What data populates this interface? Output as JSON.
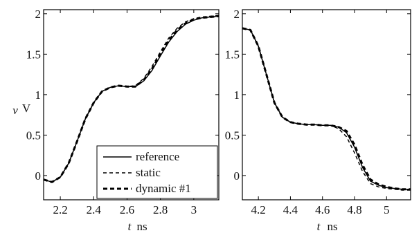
{
  "chart_data": [
    {
      "type": "line",
      "title": "",
      "xlabel": {
        "symbol": "t",
        "unit": "ns"
      },
      "ylabel": {
        "symbol": "v",
        "unit": "V"
      },
      "xlim": [
        2.1,
        3.15
      ],
      "ylim": [
        -0.3,
        2.05
      ],
      "xticks": [
        "2.2",
        "2.4",
        "2.6",
        "2.8",
        "3"
      ],
      "yticks": [
        "0",
        "0.5",
        "1",
        "1.5",
        "2"
      ],
      "legend": {
        "position": "bottom-right"
      },
      "series": [
        {
          "name": "reference",
          "style": "solid",
          "x": [
            2.1,
            2.15,
            2.2,
            2.25,
            2.3,
            2.35,
            2.4,
            2.45,
            2.5,
            2.55,
            2.6,
            2.65,
            2.7,
            2.75,
            2.8,
            2.85,
            2.9,
            2.95,
            3.0,
            3.05,
            3.1,
            3.15
          ],
          "y": [
            -0.05,
            -0.08,
            -0.02,
            0.15,
            0.42,
            0.7,
            0.9,
            1.04,
            1.09,
            1.11,
            1.1,
            1.1,
            1.17,
            1.3,
            1.48,
            1.65,
            1.78,
            1.87,
            1.92,
            1.95,
            1.96,
            1.97
          ]
        },
        {
          "name": "static",
          "style": "dashed",
          "x": [
            2.1,
            2.15,
            2.2,
            2.25,
            2.3,
            2.35,
            2.4,
            2.45,
            2.5,
            2.55,
            2.6,
            2.65,
            2.7,
            2.75,
            2.8,
            2.85,
            2.9,
            2.95,
            3.0,
            3.05,
            3.1,
            3.15
          ],
          "y": [
            -0.05,
            -0.08,
            -0.02,
            0.15,
            0.42,
            0.7,
            0.9,
            1.04,
            1.09,
            1.11,
            1.1,
            1.11,
            1.2,
            1.35,
            1.53,
            1.7,
            1.82,
            1.9,
            1.94,
            1.96,
            1.97,
            1.98
          ]
        },
        {
          "name": "dynamic #1",
          "style": "bold-dashed",
          "x": [
            2.1,
            2.15,
            2.2,
            2.25,
            2.3,
            2.35,
            2.4,
            2.45,
            2.5,
            2.55,
            2.6,
            2.65,
            2.7,
            2.75,
            2.8,
            2.85,
            2.9,
            2.95,
            3.0,
            3.05,
            3.1,
            3.15
          ],
          "y": [
            -0.05,
            -0.08,
            -0.02,
            0.15,
            0.42,
            0.7,
            0.9,
            1.04,
            1.09,
            1.11,
            1.1,
            1.1,
            1.18,
            1.32,
            1.5,
            1.67,
            1.8,
            1.88,
            1.93,
            1.95,
            1.96,
            1.97
          ]
        }
      ]
    },
    {
      "type": "line",
      "title": "",
      "xlabel": {
        "symbol": "t",
        "unit": "ns"
      },
      "ylabel": {
        "symbol": "",
        "unit": ""
      },
      "xlim": [
        4.1,
        5.15
      ],
      "ylim": [
        -0.3,
        2.05
      ],
      "xticks": [
        "4.2",
        "4.4",
        "4.6",
        "4.8",
        "5"
      ],
      "yticks": [
        "0",
        "0.5",
        "1",
        "1.5",
        "2"
      ],
      "series": [
        {
          "name": "reference",
          "style": "solid",
          "x": [
            4.1,
            4.15,
            4.2,
            4.25,
            4.3,
            4.35,
            4.4,
            4.45,
            4.5,
            4.55,
            4.6,
            4.65,
            4.7,
            4.75,
            4.8,
            4.85,
            4.9,
            4.95,
            5.0,
            5.05,
            5.1,
            5.15
          ],
          "y": [
            1.82,
            1.8,
            1.6,
            1.25,
            0.9,
            0.72,
            0.66,
            0.64,
            0.63,
            0.63,
            0.62,
            0.62,
            0.6,
            0.53,
            0.35,
            0.1,
            -0.07,
            -0.12,
            -0.15,
            -0.16,
            -0.17,
            -0.17
          ]
        },
        {
          "name": "static",
          "style": "dashed",
          "x": [
            4.1,
            4.15,
            4.2,
            4.25,
            4.3,
            4.35,
            4.4,
            4.45,
            4.5,
            4.55,
            4.6,
            4.65,
            4.7,
            4.75,
            4.8,
            4.85,
            4.9,
            4.95,
            5.0,
            5.05,
            5.1,
            5.15
          ],
          "y": [
            1.82,
            1.8,
            1.6,
            1.25,
            0.9,
            0.72,
            0.66,
            0.64,
            0.63,
            0.63,
            0.62,
            0.62,
            0.58,
            0.48,
            0.28,
            0.05,
            -0.1,
            -0.14,
            -0.16,
            -0.17,
            -0.18,
            -0.18
          ]
        },
        {
          "name": "dynamic #1",
          "style": "bold-dashed",
          "x": [
            4.1,
            4.15,
            4.2,
            4.25,
            4.3,
            4.35,
            4.4,
            4.45,
            4.5,
            4.55,
            4.6,
            4.65,
            4.7,
            4.75,
            4.8,
            4.85,
            4.9,
            4.95,
            5.0,
            5.05,
            5.1,
            5.15
          ],
          "y": [
            1.82,
            1.8,
            1.6,
            1.25,
            0.9,
            0.72,
            0.66,
            0.64,
            0.63,
            0.63,
            0.62,
            0.62,
            0.6,
            0.55,
            0.38,
            0.13,
            -0.05,
            -0.11,
            -0.14,
            -0.16,
            -0.17,
            -0.17
          ]
        }
      ]
    }
  ]
}
